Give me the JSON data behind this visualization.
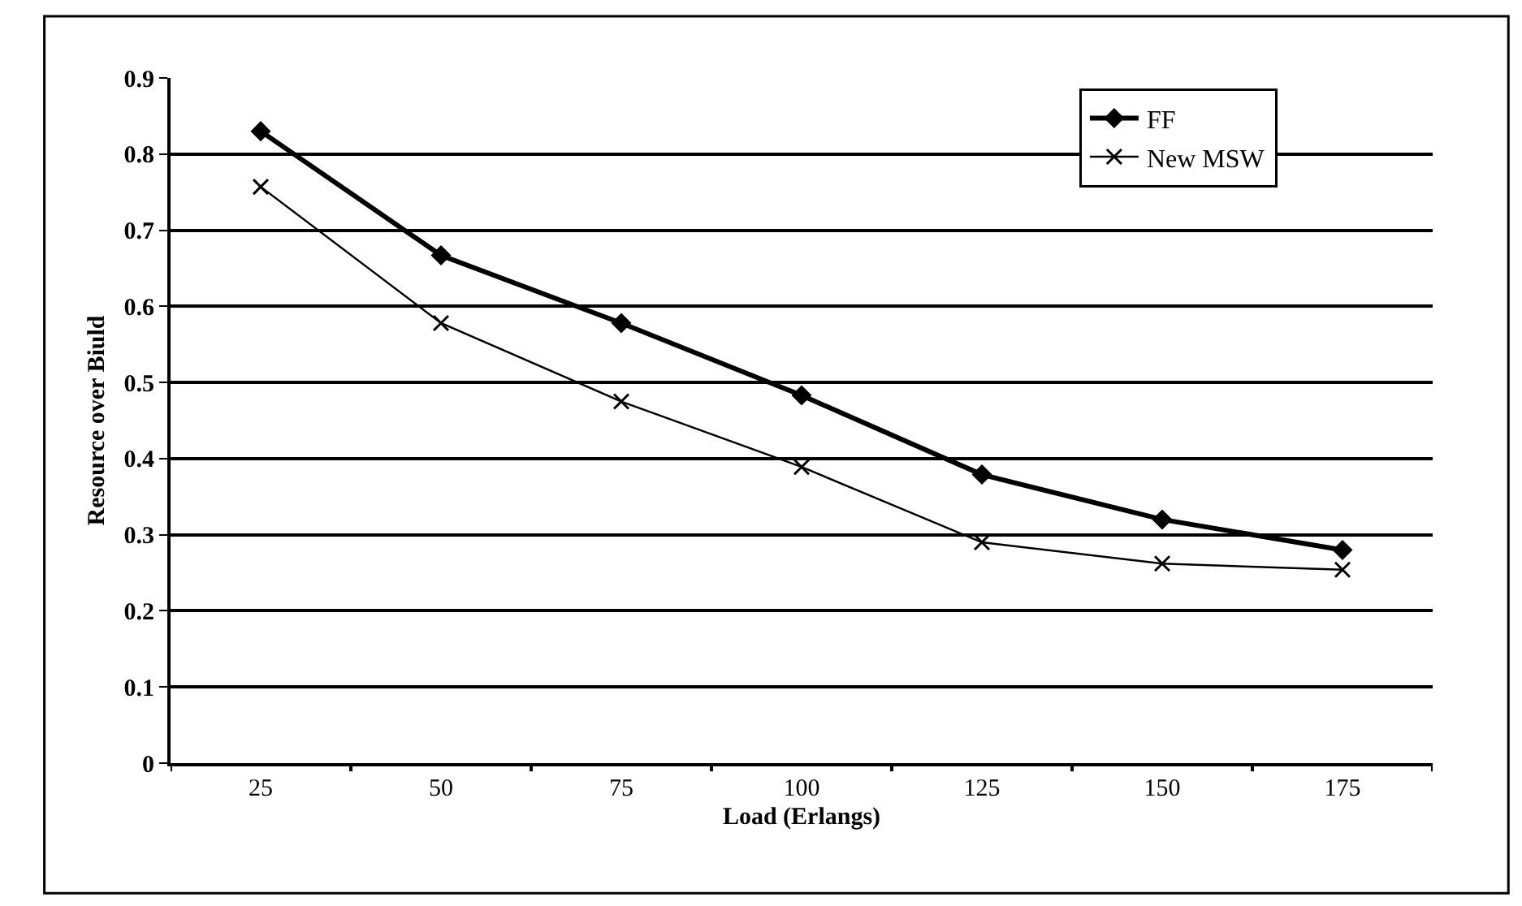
{
  "chart_data": {
    "type": "line",
    "xlabel": "Load (Erlangs)",
    "ylabel": "Resource over Biuld",
    "categories": [
      "25",
      "50",
      "75",
      "100",
      "125",
      "150",
      "175"
    ],
    "series": [
      {
        "name": "FF",
        "color": "#000000",
        "marker": "diamond",
        "values": [
          0.83,
          0.667,
          0.578,
          0.483,
          0.379,
          0.32,
          0.28
        ]
      },
      {
        "name": "New MSW",
        "color": "#000000",
        "marker": "cross",
        "values": [
          0.757,
          0.578,
          0.475,
          0.389,
          0.29,
          0.262,
          0.254
        ]
      }
    ],
    "ylim": [
      0,
      0.9
    ],
    "yticks": [
      0,
      0.1,
      0.2,
      0.3,
      0.4,
      0.5,
      0.6,
      0.7,
      0.8,
      0.9
    ],
    "grid": "y",
    "legend": "top right",
    "line_style": "solid"
  }
}
